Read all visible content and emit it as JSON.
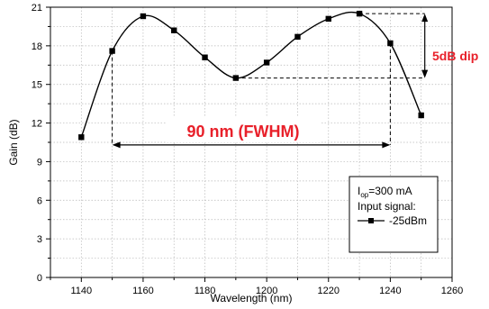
{
  "chart_data": {
    "type": "line",
    "xlabel": "Wavelength (nm)",
    "ylabel": "Gain (dB)",
    "xlim": [
      1130,
      1260
    ],
    "ylim": [
      0,
      21
    ],
    "xticks": [
      1140,
      1160,
      1180,
      1200,
      1220,
      1240,
      1260
    ],
    "yticks": [
      0,
      3,
      6,
      9,
      12,
      15,
      18,
      21
    ],
    "grid": true,
    "x": [
      1140,
      1150,
      1160,
      1170,
      1180,
      1190,
      1200,
      1210,
      1220,
      1230,
      1240,
      1250
    ],
    "y": [
      10.9,
      17.6,
      20.3,
      19.2,
      17.1,
      15.5,
      16.7,
      18.7,
      20.1,
      20.5,
      18.2,
      12.6
    ],
    "annotations": {
      "fwhm": {
        "text": "90 nm (FWHM)",
        "x_start": 1150,
        "x_end": 1240,
        "y": 10.3
      },
      "dip": {
        "text": "5dB dip",
        "x": 1250,
        "y_top": 20.5,
        "y_bottom": 15.5
      }
    },
    "legend": {
      "position": "bottom-right",
      "line1_main": "I",
      "line1_sub": "op",
      "line1_rest": "=300 mA",
      "line2": "Input signal:",
      "series_label": "-25dBm"
    },
    "series_color": "#000000",
    "annotation_color": "#e8202a"
  }
}
